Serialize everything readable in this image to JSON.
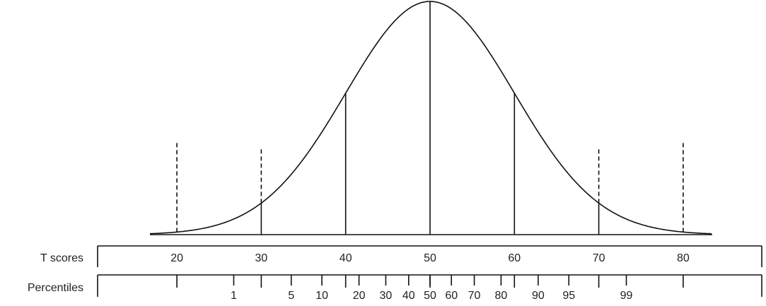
{
  "t_scores": {
    "label": "T scores",
    "ticks": [
      20,
      30,
      40,
      50,
      60,
      70,
      80
    ]
  },
  "percentiles": {
    "label": "Percentiles",
    "ticks": [
      1,
      5,
      10,
      20,
      30,
      40,
      50,
      60,
      70,
      80,
      90,
      95,
      99
    ]
  }
}
